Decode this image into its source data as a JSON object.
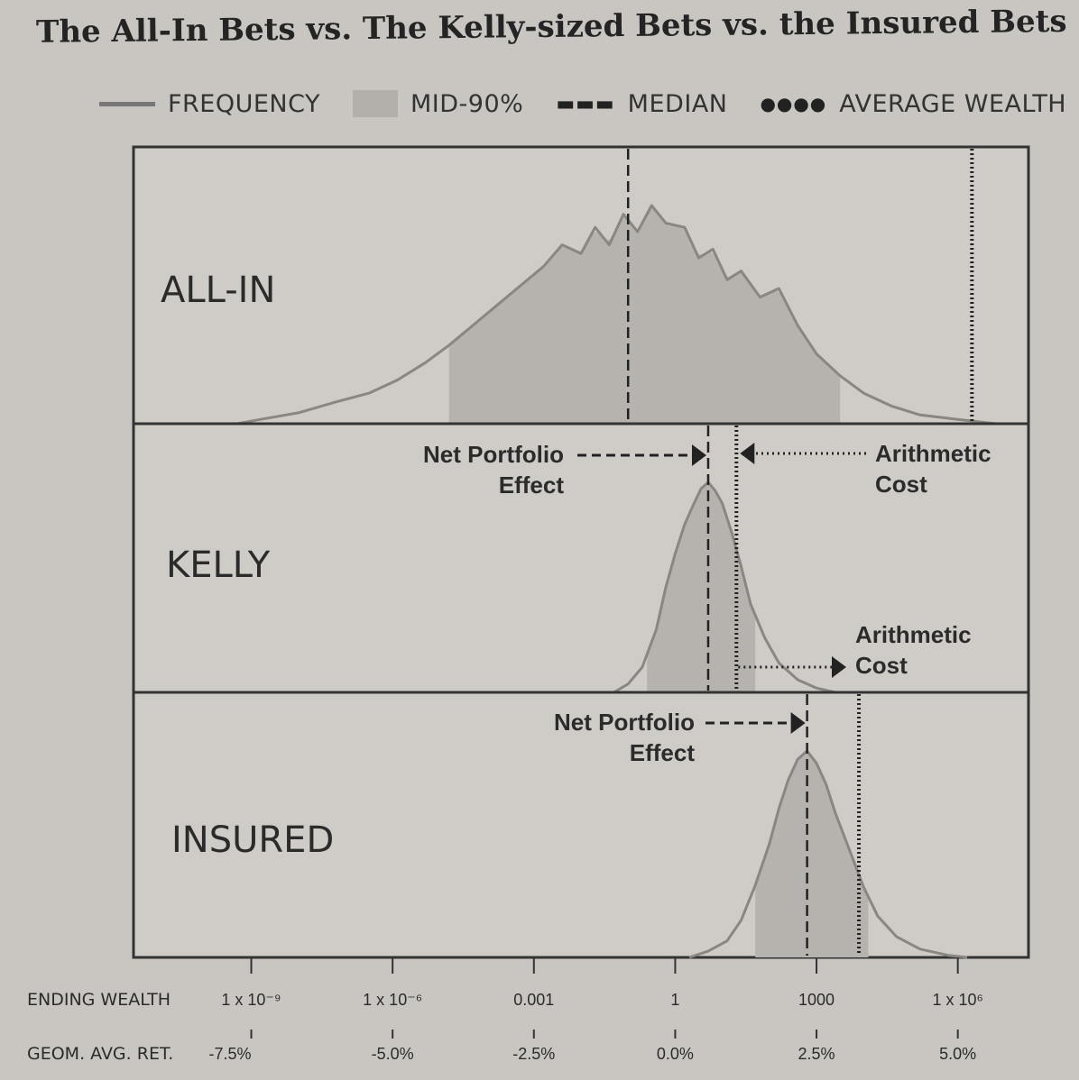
{
  "title": "The All-In Bets vs. The Kelly-sized Bets vs. the Insured Bets",
  "legend": {
    "frequency": "FREQUENCY",
    "mid90": "MID-90%",
    "median": "MEDIAN",
    "average": "AVERAGE WEALTH"
  },
  "chart_data": {
    "type": "area",
    "x_axis": {
      "label": "ENDING WEALTH",
      "scale": "log",
      "range_log10": [
        -11.5,
        7.5
      ],
      "ticks": [
        {
          "label": "1 x 10⁻⁹",
          "log10": -9
        },
        {
          "label": "1 x 10⁻⁶",
          "log10": -6
        },
        {
          "label": "0.001",
          "log10": -3
        },
        {
          "label": "1",
          "log10": 0
        },
        {
          "label": "1000",
          "log10": 3
        },
        {
          "label": "1 x 10⁶",
          "log10": 6
        }
      ]
    },
    "secondary_axis": {
      "label": "GEOM. AVG. RET.",
      "ticks": [
        "-7.5%",
        "-5.0%",
        "-2.5%",
        "0.0%",
        "2.5%",
        "5.0%"
      ]
    },
    "series": [
      {
        "name": "ALL-IN",
        "median_log10": -1.0,
        "mid90_log10": [
          -4.8,
          3.5
        ],
        "average_log10": 6.3,
        "frequency": [
          {
            "x": -9.3,
            "y": 0.0
          },
          {
            "x": -8.8,
            "y": 0.02
          },
          {
            "x": -8.0,
            "y": 0.05
          },
          {
            "x": -7.2,
            "y": 0.1
          },
          {
            "x": -6.5,
            "y": 0.14
          },
          {
            "x": -5.9,
            "y": 0.2
          },
          {
            "x": -5.3,
            "y": 0.28
          },
          {
            "x": -4.8,
            "y": 0.36
          },
          {
            "x": -4.3,
            "y": 0.45
          },
          {
            "x": -3.8,
            "y": 0.54
          },
          {
            "x": -3.3,
            "y": 0.63
          },
          {
            "x": -2.8,
            "y": 0.72
          },
          {
            "x": -2.4,
            "y": 0.82
          },
          {
            "x": -2.0,
            "y": 0.78
          },
          {
            "x": -1.7,
            "y": 0.9
          },
          {
            "x": -1.4,
            "y": 0.82
          },
          {
            "x": -1.1,
            "y": 0.96
          },
          {
            "x": -0.8,
            "y": 0.88
          },
          {
            "x": -0.5,
            "y": 1.0
          },
          {
            "x": -0.2,
            "y": 0.92
          },
          {
            "x": 0.2,
            "y": 0.9
          },
          {
            "x": 0.5,
            "y": 0.76
          },
          {
            "x": 0.8,
            "y": 0.8
          },
          {
            "x": 1.1,
            "y": 0.66
          },
          {
            "x": 1.4,
            "y": 0.7
          },
          {
            "x": 1.8,
            "y": 0.58
          },
          {
            "x": 2.2,
            "y": 0.62
          },
          {
            "x": 2.6,
            "y": 0.45
          },
          {
            "x": 3.0,
            "y": 0.32
          },
          {
            "x": 3.5,
            "y": 0.22
          },
          {
            "x": 4.0,
            "y": 0.14
          },
          {
            "x": 4.6,
            "y": 0.08
          },
          {
            "x": 5.2,
            "y": 0.04
          },
          {
            "x": 6.0,
            "y": 0.02
          },
          {
            "x": 6.8,
            "y": 0.0
          }
        ]
      },
      {
        "name": "KELLY",
        "median_log10": 0.7,
        "mid90_log10": [
          -0.6,
          1.7
        ],
        "average_log10": 1.3,
        "frequency": [
          {
            "x": -1.3,
            "y": 0.0
          },
          {
            "x": -1.0,
            "y": 0.04
          },
          {
            "x": -0.7,
            "y": 0.12
          },
          {
            "x": -0.4,
            "y": 0.3
          },
          {
            "x": -0.2,
            "y": 0.5
          },
          {
            "x": 0.0,
            "y": 0.66
          },
          {
            "x": 0.2,
            "y": 0.8
          },
          {
            "x": 0.4,
            "y": 0.9
          },
          {
            "x": 0.55,
            "y": 0.97
          },
          {
            "x": 0.7,
            "y": 1.0
          },
          {
            "x": 0.85,
            "y": 0.96
          },
          {
            "x": 1.0,
            "y": 0.9
          },
          {
            "x": 1.2,
            "y": 0.76
          },
          {
            "x": 1.4,
            "y": 0.6
          },
          {
            "x": 1.6,
            "y": 0.42
          },
          {
            "x": 1.9,
            "y": 0.26
          },
          {
            "x": 2.2,
            "y": 0.14
          },
          {
            "x": 2.6,
            "y": 0.06
          },
          {
            "x": 3.0,
            "y": 0.02
          },
          {
            "x": 3.4,
            "y": 0.0
          }
        ]
      },
      {
        "name": "INSURED",
        "median_log10": 2.8,
        "mid90_log10": [
          1.7,
          4.1
        ],
        "average_log10": 3.9,
        "frequency": [
          {
            "x": 0.3,
            "y": 0.0
          },
          {
            "x": 0.7,
            "y": 0.03
          },
          {
            "x": 1.1,
            "y": 0.08
          },
          {
            "x": 1.4,
            "y": 0.18
          },
          {
            "x": 1.7,
            "y": 0.35
          },
          {
            "x": 2.0,
            "y": 0.55
          },
          {
            "x": 2.2,
            "y": 0.72
          },
          {
            "x": 2.4,
            "y": 0.86
          },
          {
            "x": 2.6,
            "y": 0.96
          },
          {
            "x": 2.8,
            "y": 1.0
          },
          {
            "x": 3.0,
            "y": 0.94
          },
          {
            "x": 3.2,
            "y": 0.84
          },
          {
            "x": 3.4,
            "y": 0.7
          },
          {
            "x": 3.7,
            "y": 0.52
          },
          {
            "x": 4.0,
            "y": 0.34
          },
          {
            "x": 4.3,
            "y": 0.2
          },
          {
            "x": 4.7,
            "y": 0.1
          },
          {
            "x": 5.2,
            "y": 0.04
          },
          {
            "x": 5.8,
            "y": 0.01
          },
          {
            "x": 6.2,
            "y": 0.0
          }
        ]
      }
    ],
    "annotations": [
      {
        "panel": "KELLY",
        "line1": "Net Portfolio",
        "line2": "Effect",
        "points_to": "median"
      },
      {
        "panel": "KELLY",
        "line1": "Arithmetic",
        "line2": "Cost",
        "points_to": "average"
      },
      {
        "panel": "INSURED",
        "line1": "Net Portfolio",
        "line2": "Effect",
        "points_to": "median"
      },
      {
        "panel": "INSURED",
        "line1": "Arithmetic",
        "line2": "Cost",
        "points_to": "average"
      }
    ]
  }
}
